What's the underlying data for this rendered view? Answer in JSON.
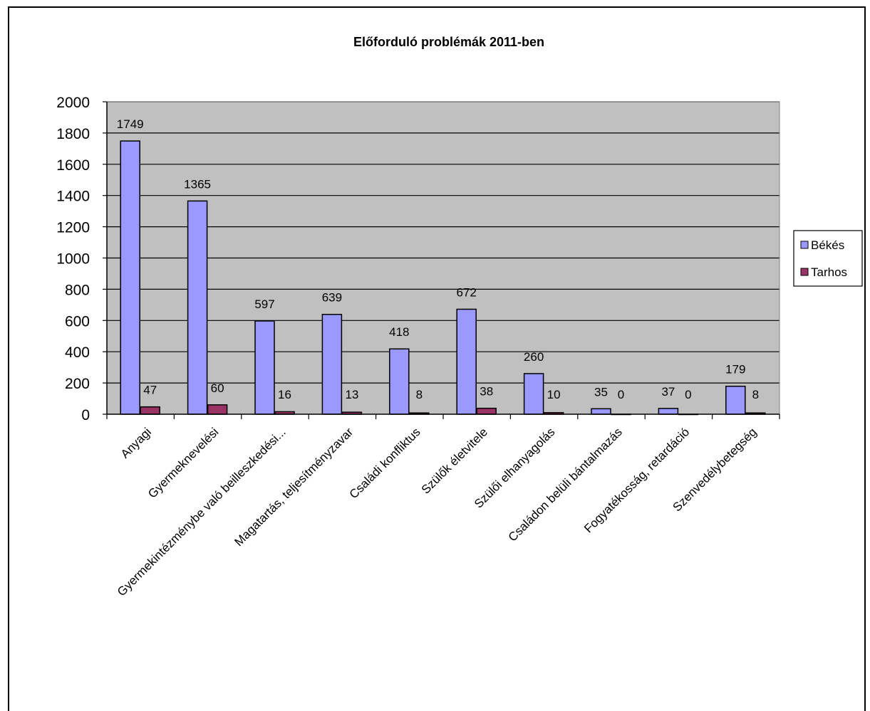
{
  "chart_data": {
    "type": "bar",
    "title": "Előforduló problémák 2011-ben",
    "xlabel": "",
    "ylabel": "",
    "ylim": [
      0,
      2000
    ],
    "ytick_step": 200,
    "grid": true,
    "legend_position": "right",
    "plot_background": "#c0c0c0",
    "categories": [
      "Anyagi",
      "Gyermeknevelési",
      "Gyermekintézménybe való beilleszkedési...",
      "Magatartás, teljesítményzavar",
      "Családi konfliktus",
      "Szülők életvitele",
      "Szülői elhanyagolás",
      "Családon belüli bántalmazás",
      "Fogyatékosság, retardáció",
      "Szenvedélybetegség"
    ],
    "series": [
      {
        "name": "Békés",
        "color": "#9999ff",
        "values": [
          1749,
          1365,
          597,
          639,
          418,
          672,
          260,
          35,
          37,
          179
        ]
      },
      {
        "name": "Tarhos",
        "color": "#993366",
        "values": [
          47,
          60,
          16,
          13,
          8,
          38,
          10,
          0,
          0,
          8
        ]
      }
    ]
  }
}
